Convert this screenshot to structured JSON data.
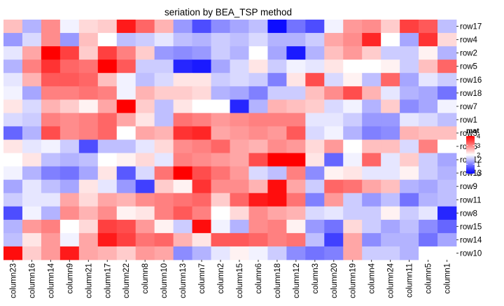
{
  "chart_data": {
    "type": "heatmap",
    "title": "seriation by BEA_TSP method",
    "columns": [
      "column23",
      "column16",
      "column14",
      "column9",
      "column21",
      "column17",
      "column22",
      "column8",
      "column10",
      "column13",
      "column7",
      "column2",
      "column15",
      "column6",
      "column18",
      "column12",
      "column3",
      "column20",
      "column19",
      "column4",
      "column24",
      "column11",
      "column5",
      "column1"
    ],
    "rows": [
      "row17",
      "row4",
      "row2",
      "row5",
      "row16",
      "row18",
      "row7",
      "row1",
      "row3",
      "row6",
      "row12",
      "row13",
      "row9",
      "row11",
      "row8",
      "row15",
      "row14",
      "row10"
    ],
    "values": [
      [
        2.5,
        1.4,
        2.9,
        1.9,
        2.3,
        2.4,
        3.8,
        3.2,
        2.6,
        1.2,
        0.6,
        1.1,
        1.3,
        1.5,
        0.1,
        0.9,
        0.6,
        1.9,
        2.8,
        2.9,
        2.4,
        3.5,
        3.3,
        1.5
      ],
      [
        1.2,
        1.7,
        2.9,
        1.2,
        2.5,
        2.0,
        1.5,
        1.6,
        1.8,
        1.5,
        1.4,
        1.6,
        1.5,
        1.7,
        1.4,
        1.4,
        1.6,
        2.7,
        2.9,
        3.7,
        2.0,
        1.3,
        3.6,
        2.3
      ],
      [
        1.8,
        2.7,
        4.0,
        3.5,
        2.4,
        3.5,
        3.0,
        2.4,
        1.2,
        1.1,
        1.2,
        1.6,
        1.4,
        2.0,
        1.3,
        0.2,
        1.4,
        2.5,
        2.8,
        2.4,
        1.6,
        1.6,
        2.1,
        1.4
      ],
      [
        1.4,
        3.0,
        3.6,
        3.2,
        3.1,
        4.0,
        3.3,
        1.6,
        1.6,
        0.3,
        0.2,
        1.3,
        1.7,
        2.2,
        1.6,
        1.9,
        1.8,
        2.2,
        2.0,
        2.0,
        2.1,
        1.6,
        2.5,
        3.2
      ],
      [
        1.8,
        2.6,
        3.3,
        3.3,
        3.2,
        2.5,
        1.9,
        1.5,
        1.7,
        2.2,
        2.2,
        1.6,
        1.7,
        1.6,
        1.0,
        2.2,
        3.4,
        1.7,
        2.1,
        1.5,
        3.2,
        1.3,
        1.8,
        1.6
      ],
      [
        1.9,
        1.3,
        3.0,
        3.0,
        3.1,
        3.0,
        1.9,
        2.6,
        2.4,
        2.4,
        2.3,
        1.4,
        1.3,
        1.0,
        1.6,
        1.6,
        2.5,
        2.9,
        3.4,
        2.6,
        1.8,
        1.4,
        1.3,
        0.9
      ],
      [
        2.2,
        1.7,
        2.6,
        2.4,
        2.1,
        2.7,
        4.0,
        2.4,
        1.5,
        2.2,
        2.0,
        2.0,
        0.3,
        1.4,
        2.6,
        2.5,
        2.4,
        1.7,
        1.9,
        1.4,
        2.4,
        1.1,
        1.3,
        1.9
      ],
      [
        1.7,
        1.6,
        3.0,
        2.9,
        3.0,
        3.2,
        2.7,
        2.2,
        1.5,
        3.1,
        3.0,
        2.8,
        2.9,
        3.0,
        3.0,
        3.0,
        1.8,
        1.8,
        1.6,
        1.2,
        1.2,
        1.8,
        1.7,
        1.5
      ],
      [
        0.8,
        1.4,
        3.4,
        2.9,
        3.0,
        3.2,
        2.0,
        2.7,
        2.6,
        3.6,
        3.7,
        2.7,
        2.8,
        2.9,
        2.8,
        3.3,
        1.7,
        1.9,
        1.4,
        1.0,
        1.1,
        2.6,
        2.5,
        2.5
      ],
      [
        2.2,
        1.8,
        1.9,
        1.6,
        0.6,
        1.5,
        1.5,
        1.8,
        2.3,
        2.9,
        3.0,
        3.2,
        2.7,
        2.6,
        2.9,
        2.8,
        2.3,
        2.8,
        2.0,
        2.5,
        2.5,
        1.7,
        3.0,
        2.0
      ],
      [
        2.0,
        2.2,
        1.5,
        1.4,
        1.5,
        2.0,
        2.1,
        2.3,
        1.8,
        3.0,
        2.9,
        2.8,
        2.7,
        3.4,
        4.0,
        4.0,
        2.2,
        0.8,
        1.9,
        3.2,
        1.8,
        2.4,
        1.6,
        1.3
      ],
      [
        1.9,
        1.4,
        1.0,
        0.9,
        1.3,
        2.2,
        0.7,
        1.7,
        3.1,
        4.0,
        3.4,
        3.1,
        2.8,
        1.7,
        1.5,
        3.0,
        1.1,
        2.1,
        2.2,
        1.8,
        1.8,
        2.1,
        1.6,
        1.4
      ],
      [
        1.3,
        1.8,
        1.5,
        1.3,
        2.2,
        1.8,
        1.2,
        0.5,
        2.4,
        2.1,
        3.6,
        2.9,
        2.9,
        2.6,
        3.9,
        2.7,
        1.6,
        3.2,
        3.1,
        2.7,
        2.5,
        1.4,
        1.3,
        1.5
      ],
      [
        1.6,
        1.8,
        1.8,
        2.7,
        2.3,
        2.7,
        2.6,
        2.9,
        3.0,
        3.1,
        3.2,
        2.4,
        3.2,
        3.8,
        3.9,
        3.1,
        1.0,
        2.8,
        1.6,
        1.2,
        1.5,
        0.9,
        1.4,
        1.5
      ],
      [
        0.6,
        1.9,
        1.4,
        2.9,
        2.6,
        2.9,
        2.1,
        2.2,
        3.0,
        3.3,
        3.0,
        2.0,
        2.3,
        2.9,
        2.7,
        2.6,
        1.7,
        1.8,
        1.6,
        1.6,
        2.1,
        1.6,
        1.8,
        0.3
      ],
      [
        1.4,
        2.8,
        3.0,
        2.0,
        2.3,
        3.5,
        3.4,
        2.8,
        2.1,
        1.6,
        3.9,
        1.9,
        1.4,
        2.9,
        3.0,
        2.1,
        1.2,
        0.9,
        2.3,
        1.6,
        1.3,
        1.5,
        1.1,
        0.8
      ],
      [
        1.5,
        2.2,
        2.8,
        1.9,
        2.7,
        3.8,
        3.5,
        3.1,
        3.2,
        2.6,
        2.2,
        3.3,
        3.3,
        3.2,
        3.0,
        3.1,
        1.5,
        0.5,
        2.7,
        1.1,
        1.4,
        1.4,
        0.9,
        1.3
      ],
      [
        3.9,
        2.4,
        2.8,
        3.8,
        2.7,
        2.6,
        2.4,
        2.8,
        2.7,
        1.1,
        1.4,
        1.8,
        2.1,
        1.9,
        1.6,
        1.1,
        0.9,
        1.0,
        2.7,
        1.6,
        1.6,
        1.4,
        2.0,
        2.0
      ]
    ],
    "legend": {
      "title": "mat",
      "ticks": [
        4,
        3,
        2,
        1,
        0
      ],
      "min": 0,
      "max": 4,
      "position": "right",
      "colors": {
        "low": "#0000ff",
        "mid": "#ffffff",
        "high": "#ff0000"
      }
    },
    "xlabel": "",
    "ylabel": "",
    "grid": false
  }
}
